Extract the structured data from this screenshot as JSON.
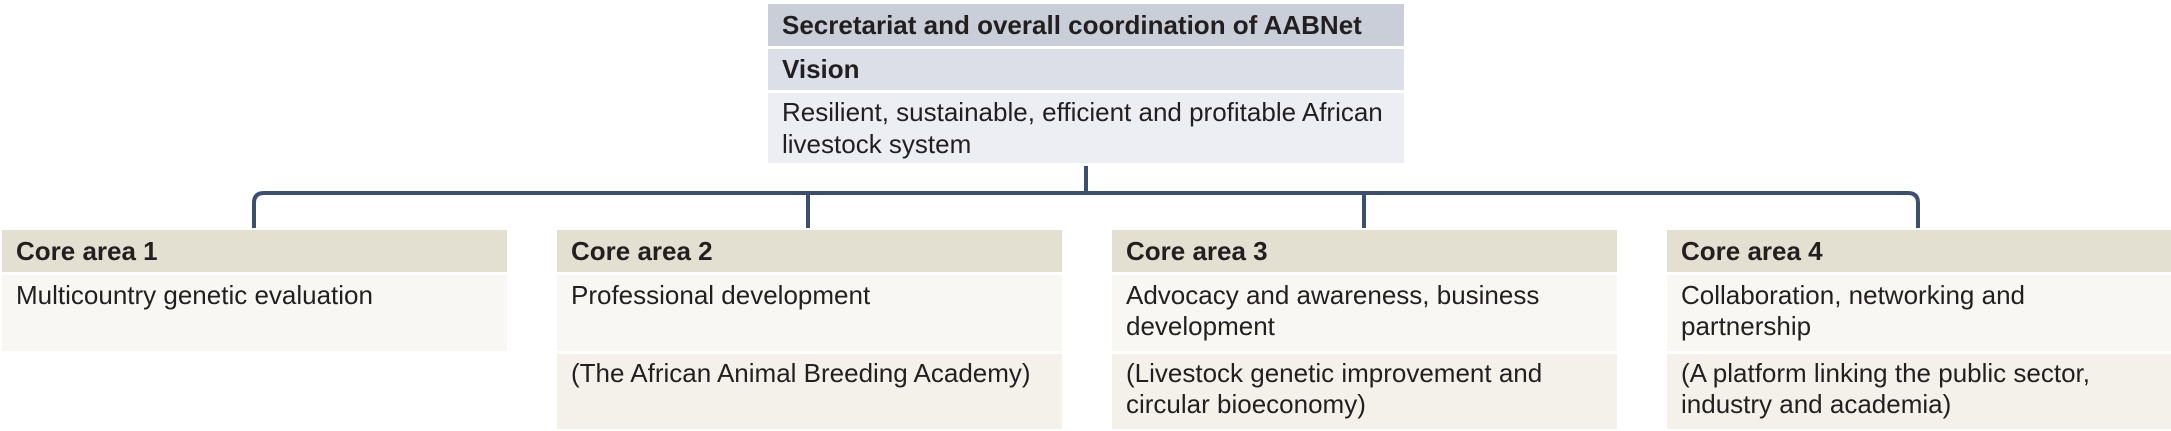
{
  "top": {
    "title": "Secretariat and overall coordination of AABNet",
    "vision_label": "Vision",
    "vision_text": "Resilient, sustainable, efficient and profitable African livestock system"
  },
  "core_areas": [
    {
      "header": "Core area 1",
      "description": "Multicountry genetic evaluation",
      "note": ""
    },
    {
      "header": "Core area 2",
      "description": "Professional development",
      "note": "(The African Animal Breeding Academy)"
    },
    {
      "header": "Core area 3",
      "description": "Advocacy and awareness, business development",
      "note": "(Livestock genetic improvement and circular bioeconomy)"
    },
    {
      "header": "Core area 4",
      "description": "Collaboration, networking and partnership",
      "note": "(A platform linking the public sector, industry and academia)"
    }
  ],
  "colors": {
    "connector": "#3d4f6e",
    "top_title_bg": "#c9ced9",
    "top_vision_bg": "#dcdfe8",
    "top_desc_bg": "#eceef3",
    "core_header_bg": "#e4e0d1",
    "core_desc_bg": "#f8f7f3",
    "core_note_bg": "#f3f1ea"
  }
}
